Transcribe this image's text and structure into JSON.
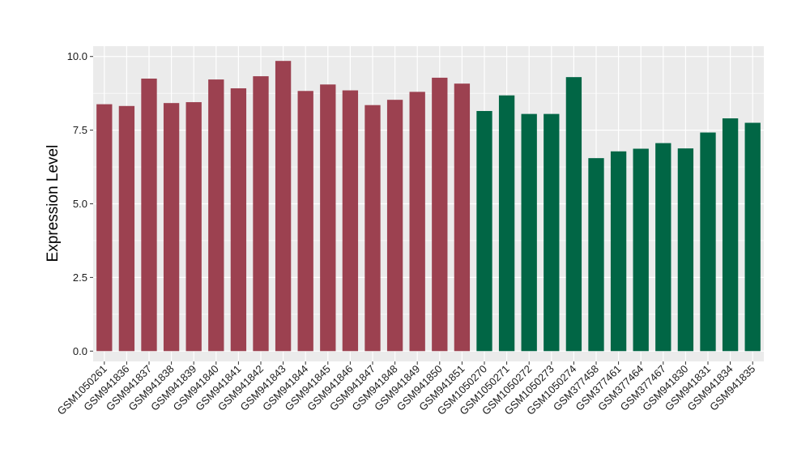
{
  "chart_data": {
    "type": "bar",
    "title": "",
    "xlabel": "",
    "ylabel": "Expression Level",
    "ylim": [
      -0.35,
      10.35
    ],
    "yticks": [
      0.0,
      2.5,
      5.0,
      7.5,
      10.0
    ],
    "ytick_labels": [
      "0.0",
      "2.5",
      "5.0",
      "7.5",
      "10.0"
    ],
    "grid": true,
    "legend": "none",
    "panel_background": "#EBEBEB",
    "grid_color": "#FFFFFF",
    "categories": [
      "GSM1050261",
      "GSM941836",
      "GSM941837",
      "GSM941838",
      "GSM941839",
      "GSM941840",
      "GSM941841",
      "GSM941842",
      "GSM941843",
      "GSM941844",
      "GSM941845",
      "GSM941846",
      "GSM941847",
      "GSM941848",
      "GSM941849",
      "GSM941850",
      "GSM941851",
      "GSM1050270",
      "GSM1050271",
      "GSM1050272",
      "GSM1050273",
      "GSM1050274",
      "GSM377458",
      "GSM377461",
      "GSM377464",
      "GSM377467",
      "GSM941830",
      "GSM941831",
      "GSM941834",
      "GSM941835"
    ],
    "values": [
      8.38,
      8.32,
      9.25,
      8.42,
      8.45,
      9.22,
      8.92,
      9.33,
      9.85,
      8.83,
      9.05,
      8.85,
      8.35,
      8.53,
      8.8,
      9.28,
      9.08,
      8.15,
      8.68,
      8.05,
      8.05,
      9.3,
      6.55,
      6.78,
      6.87,
      7.06,
      6.88,
      7.42,
      7.9,
      7.75
    ],
    "bar_colors": [
      "#9C4150",
      "#9C4150",
      "#9C4150",
      "#9C4150",
      "#9C4150",
      "#9C4150",
      "#9C4150",
      "#9C4150",
      "#9C4150",
      "#9C4150",
      "#9C4150",
      "#9C4150",
      "#9C4150",
      "#9C4150",
      "#9C4150",
      "#9C4150",
      "#9C4150",
      "#016645",
      "#016645",
      "#016645",
      "#016645",
      "#016645",
      "#016645",
      "#016645",
      "#016645",
      "#016645",
      "#016645",
      "#016645",
      "#016645",
      "#016645"
    ]
  }
}
